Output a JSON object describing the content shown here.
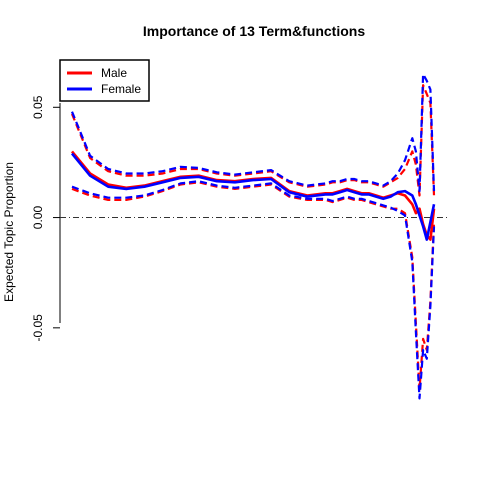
{
  "chart_data": {
    "type": "line",
    "title": "Importance of 13 Term&functions",
    "xlabel": "",
    "ylabel": "Expected Topic Proportion",
    "ylim": [
      -0.08,
      0.066
    ],
    "y_ticks": [
      {
        "value": -0.05,
        "label": "-0.05"
      },
      {
        "value": 0.0,
        "label": "0.00"
      },
      {
        "value": 0.05,
        "label": "0.05"
      }
    ],
    "x_axis_shown": false,
    "reference_line": {
      "y": 0.0,
      "style": "dash-dot",
      "color": "#333333"
    },
    "legend": {
      "position": "top-left",
      "entries": [
        {
          "label": "Male",
          "color": "#ff0000"
        },
        {
          "label": "Female",
          "color": "#0000ff"
        }
      ]
    },
    "x": [
      0,
      5,
      10,
      15,
      20,
      25,
      30,
      35,
      40,
      45,
      50,
      55,
      60,
      65,
      70,
      72,
      74,
      76,
      78,
      80,
      82,
      84,
      86,
      88,
      90,
      92,
      94,
      95,
      96,
      97,
      98,
      99,
      100
    ],
    "series": [
      {
        "name": "Male",
        "color": "#ff0000",
        "role": "estimate",
        "values": [
          0.03,
          0.02,
          0.015,
          0.0135,
          0.0145,
          0.0165,
          0.0185,
          0.019,
          0.017,
          0.0165,
          0.0175,
          0.018,
          0.012,
          0.01,
          0.011,
          0.011,
          0.012,
          0.013,
          0.012,
          0.011,
          0.011,
          0.01,
          0.009,
          0.01,
          0.011,
          0.01,
          0.006,
          0.002,
          0.004,
          -0.003,
          -0.008,
          -0.01,
          0.004
        ]
      },
      {
        "name": "Male",
        "color": "#ff0000",
        "role": "upper",
        "values": [
          0.047,
          0.027,
          0.021,
          0.019,
          0.019,
          0.02,
          0.022,
          0.022,
          0.02,
          0.019,
          0.02,
          0.021,
          0.016,
          0.014,
          0.015,
          0.016,
          0.016,
          0.017,
          0.017,
          0.016,
          0.016,
          0.015,
          0.014,
          0.016,
          0.018,
          0.022,
          0.03,
          0.024,
          0.01,
          0.06,
          0.056,
          0.052,
          0.01
        ]
      },
      {
        "name": "Male",
        "color": "#ff0000",
        "role": "lower",
        "values": [
          0.013,
          0.01,
          0.008,
          0.008,
          0.0095,
          0.012,
          0.015,
          0.016,
          0.014,
          0.013,
          0.014,
          0.015,
          0.0095,
          0.008,
          0.008,
          0.007,
          0.008,
          0.009,
          0.008,
          0.008,
          0.007,
          0.006,
          0.005,
          0.004,
          0.004,
          0.002,
          -0.018,
          -0.048,
          -0.078,
          -0.055,
          -0.06,
          -0.038,
          -0.002
        ]
      },
      {
        "name": "Female",
        "color": "#0000ff",
        "role": "estimate",
        "values": [
          0.029,
          0.019,
          0.014,
          0.013,
          0.014,
          0.016,
          0.018,
          0.0185,
          0.0165,
          0.016,
          0.017,
          0.0175,
          0.0115,
          0.0095,
          0.0105,
          0.0105,
          0.0115,
          0.0125,
          0.0115,
          0.0105,
          0.0105,
          0.0095,
          0.0085,
          0.0095,
          0.0115,
          0.012,
          0.01,
          0.006,
          0.001,
          -0.004,
          -0.01,
          -0.002,
          0.006
        ]
      },
      {
        "name": "Female",
        "color": "#0000ff",
        "role": "upper",
        "values": [
          0.048,
          0.028,
          0.022,
          0.02,
          0.02,
          0.021,
          0.023,
          0.0225,
          0.0205,
          0.0195,
          0.0205,
          0.0215,
          0.0165,
          0.0145,
          0.0155,
          0.0165,
          0.0165,
          0.0175,
          0.0175,
          0.0165,
          0.0165,
          0.0155,
          0.0145,
          0.0165,
          0.02,
          0.026,
          0.036,
          0.03,
          0.012,
          0.065,
          0.062,
          0.058,
          0.012
        ]
      },
      {
        "name": "Female",
        "color": "#0000ff",
        "role": "lower",
        "values": [
          0.014,
          0.011,
          0.009,
          0.009,
          0.01,
          0.0125,
          0.0155,
          0.0165,
          0.0145,
          0.0135,
          0.0145,
          0.0155,
          0.01,
          0.0085,
          0.0085,
          0.0075,
          0.0085,
          0.0095,
          0.0085,
          0.0085,
          0.0075,
          0.0065,
          0.0055,
          0.0045,
          0.003,
          0.001,
          -0.02,
          -0.052,
          -0.082,
          -0.06,
          -0.064,
          -0.04,
          -0.004
        ]
      }
    ]
  }
}
